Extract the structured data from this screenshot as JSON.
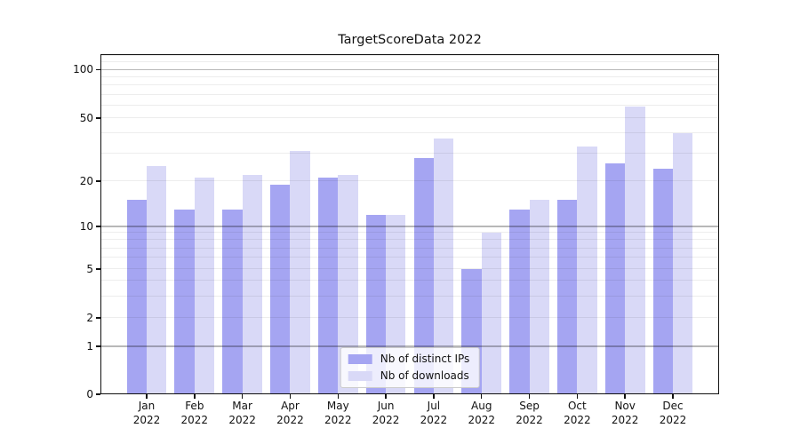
{
  "chart_data": {
    "type": "bar",
    "title": "TargetScoreData 2022",
    "categories": [
      "Jan",
      "Feb",
      "Mar",
      "Apr",
      "May",
      "Jun",
      "Jul",
      "Aug",
      "Sep",
      "Oct",
      "Nov",
      "Dec"
    ],
    "category_year": "2022",
    "series": [
      {
        "name": "Nb of distinct IPs",
        "color": "#a5a5f2",
        "values": [
          15,
          13,
          13,
          19,
          21,
          12,
          28,
          5,
          13,
          15,
          26,
          24
        ]
      },
      {
        "name": "Nb of downloads",
        "color": "#d9d9f7",
        "values": [
          25,
          21,
          22,
          31,
          22,
          12,
          37,
          9,
          15,
          33,
          59,
          40
        ]
      }
    ],
    "yscale": "symlog",
    "ylim": [
      0,
      123
    ],
    "yticks": [
      0,
      1,
      2,
      5,
      10,
      20,
      50,
      100
    ],
    "major_gridlines": [
      1,
      10,
      100
    ],
    "minor_gridlines": [
      2,
      3,
      4,
      5,
      6,
      7,
      8,
      9,
      20,
      30,
      40,
      50,
      60,
      70,
      80,
      90,
      110,
      120
    ],
    "grid": true,
    "legend": {
      "position": "lower center"
    }
  }
}
